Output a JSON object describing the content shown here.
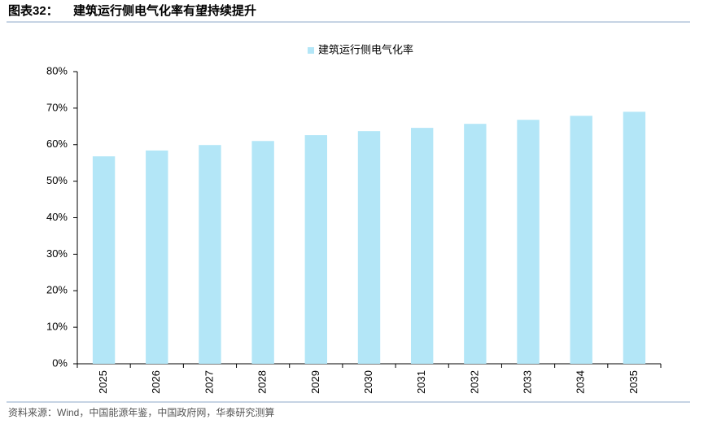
{
  "figure_label": "图表32：",
  "source": "资料来源：Wind，中国能源年鉴，中国政府网，华泰研究测算",
  "chart_data": {
    "type": "bar",
    "title": "建筑运行侧电气化率有望持续提升",
    "categories": [
      "2025",
      "2026",
      "2027",
      "2028",
      "2029",
      "2030",
      "2031",
      "2032",
      "2033",
      "2034",
      "2035"
    ],
    "series": [
      {
        "name": "建筑运行侧电气化率",
        "color": "#b3e6f7",
        "values": [
          56.8,
          58.4,
          59.9,
          61.0,
          62.6,
          63.7,
          64.6,
          65.7,
          66.8,
          67.9,
          69.0
        ]
      }
    ],
    "ylim": [
      0,
      80
    ],
    "yticks": [
      {
        "value": 0,
        "label": "0%"
      },
      {
        "value": 10,
        "label": "10%"
      },
      {
        "value": 20,
        "label": "20%"
      },
      {
        "value": 30,
        "label": "30%"
      },
      {
        "value": 40,
        "label": "40%"
      },
      {
        "value": 50,
        "label": "50%"
      },
      {
        "value": 60,
        "label": "60%"
      },
      {
        "value": 70,
        "label": "70%"
      },
      {
        "value": 80,
        "label": "80%"
      }
    ],
    "grid": false,
    "legend": "top"
  }
}
